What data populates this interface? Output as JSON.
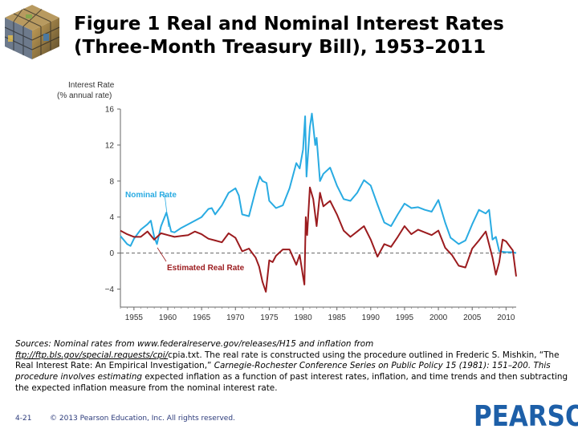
{
  "title": {
    "line1": "Figure 1  Real and Nominal Interest Rates",
    "line2": "(Three-Month Treasury Bill), 1953–2011"
  },
  "chart_data": {
    "type": "line",
    "ylabel_line1": "Interest Rate",
    "ylabel_line2": "(% annual rate)",
    "xlim": [
      1953,
      2011.5
    ],
    "ylim": [
      -6,
      16
    ],
    "yticks": [
      "16",
      "12",
      "8",
      "4",
      "0",
      "−4"
    ],
    "ytick_values": [
      16,
      12,
      8,
      4,
      0,
      -4
    ],
    "xticks": [
      "1955",
      "1960",
      "1965",
      "1970",
      "1975",
      "1980",
      "1985",
      "1990",
      "1995",
      "2000",
      "2005",
      "2010"
    ],
    "xtick_values": [
      1955,
      1960,
      1965,
      1970,
      1975,
      1980,
      1985,
      1990,
      1995,
      2000,
      2005,
      2010
    ],
    "zero_line": "dashed",
    "series": [
      {
        "name": "Nominal Rate",
        "color": "#29abe2",
        "x": [
          1953,
          1954,
          1954.5,
          1955,
          1956,
          1957,
          1957.5,
          1958,
          1958.4,
          1959,
          1959.8,
          1960,
          1960.5,
          1961,
          1962,
          1963,
          1964,
          1965,
          1966,
          1966.5,
          1967,
          1968,
          1969,
          1970,
          1970.5,
          1971,
          1972,
          1973,
          1973.6,
          1974,
          1974.6,
          1975,
          1976,
          1977,
          1978,
          1979,
          1979.5,
          1980,
          1980.3,
          1980.5,
          1981,
          1981.3,
          1981.8,
          1982,
          1982.5,
          1983,
          1984,
          1985,
          1986,
          1987,
          1988,
          1989,
          1990,
          1991,
          1992,
          1993,
          1994,
          1995,
          1996,
          1997,
          1998,
          1999,
          2000,
          2001,
          2001.8,
          2002,
          2003,
          2004,
          2005,
          2006,
          2007,
          2007.5,
          2008,
          2008.5,
          2009,
          2010,
          2011,
          2011.5
        ],
        "y": [
          1.9,
          1.0,
          0.8,
          1.6,
          2.6,
          3.2,
          3.6,
          1.8,
          1.0,
          3.0,
          4.5,
          3.9,
          2.4,
          2.3,
          2.8,
          3.2,
          3.6,
          4.0,
          4.9,
          5.0,
          4.3,
          5.3,
          6.7,
          7.2,
          6.4,
          4.3,
          4.1,
          7.0,
          8.5,
          8.0,
          7.8,
          5.8,
          5.0,
          5.3,
          7.2,
          10.0,
          9.4,
          11.5,
          15.2,
          8.5,
          14.0,
          15.5,
          12.0,
          12.8,
          8.0,
          8.8,
          9.5,
          7.5,
          6.0,
          5.8,
          6.7,
          8.1,
          7.5,
          5.4,
          3.4,
          3.0,
          4.3,
          5.5,
          5.0,
          5.1,
          4.8,
          4.6,
          5.9,
          3.4,
          1.7,
          1.6,
          1.0,
          1.4,
          3.2,
          4.8,
          4.4,
          4.8,
          1.5,
          1.8,
          0.2,
          0.1,
          0.1,
          0.0
        ]
      },
      {
        "name": "Estimated Real Rate",
        "color": "#9b1b1e",
        "x": [
          1953,
          1954,
          1955,
          1956,
          1957,
          1958,
          1959,
          1960,
          1961,
          1962,
          1963,
          1964,
          1965,
          1966,
          1967,
          1968,
          1969,
          1970,
          1971,
          1972,
          1973,
          1973.5,
          1974,
          1974.5,
          1975,
          1975.5,
          1976,
          1977,
          1978,
          1979,
          1979.5,
          1980,
          1980.2,
          1980.4,
          1980.6,
          1981,
          1981.5,
          1982,
          1982.5,
          1983,
          1984,
          1985,
          1986,
          1987,
          1988,
          1989,
          1990,
          1991,
          1992,
          1993,
          1994,
          1995,
          1996,
          1997,
          1998,
          1999,
          2000,
          2001,
          2002,
          2003,
          2004,
          2005,
          2006,
          2007,
          2008,
          2008.5,
          2009,
          2009.5,
          2010,
          2011,
          2011.5
        ],
        "y": [
          2.5,
          2.1,
          1.8,
          1.8,
          2.4,
          1.5,
          2.2,
          2.0,
          1.8,
          1.9,
          2.0,
          2.4,
          2.1,
          1.6,
          1.4,
          1.2,
          2.2,
          1.7,
          0.2,
          0.5,
          -0.5,
          -1.5,
          -3.2,
          -4.3,
          -0.8,
          -1.0,
          -0.3,
          0.4,
          0.4,
          -1.3,
          -0.2,
          -2.6,
          -3.5,
          4.0,
          2.0,
          7.3,
          6.0,
          3.0,
          6.7,
          5.2,
          5.8,
          4.3,
          2.5,
          1.8,
          2.4,
          3.0,
          1.5,
          -0.4,
          1.0,
          0.7,
          1.8,
          3.0,
          2.1,
          2.6,
          2.3,
          2.0,
          2.5,
          0.6,
          -0.2,
          -1.4,
          -1.6,
          0.5,
          1.4,
          2.4,
          -0.5,
          -2.4,
          -1.0,
          1.5,
          1.3,
          0.3,
          -2.6
        ]
      }
    ],
    "annotations": [
      {
        "text": "Nominal Rate",
        "color": "#29abe2"
      },
      {
        "text": "Estimated Real Rate",
        "color": "#9b1b1e"
      }
    ]
  },
  "sources": {
    "part1": "Sources: Nominal rates from www.federalreserve.gov/releases/H15 and inflation from",
    "link": "ftp://ftp.bls.gov/special.requests/cpi/",
    "part2": "cpia.txt. The real rate is constructed using the procedure outlined in Frederic S. Mishkin, “The Real Interest Rate: An Empirical Investigation,”",
    "part3": " Carnegie-Rochester Conference Series on Public Policy 15 (1981): 151–200. This procedure involves estimating",
    "part4": " expected inflation as a function of past interest rates, inflation, and time trends and then subtracting the expected inflation measure from the nominal interest rate."
  },
  "footer": {
    "page": "4-21",
    "copyright": "© 2013 Pearson Education, Inc. All rights reserved.",
    "brand": "PEARSON",
    "brand_color": "#1d5fa8"
  },
  "colors": {
    "nominal": "#29abe2",
    "real": "#9b1b1e",
    "axis": "#555555"
  }
}
